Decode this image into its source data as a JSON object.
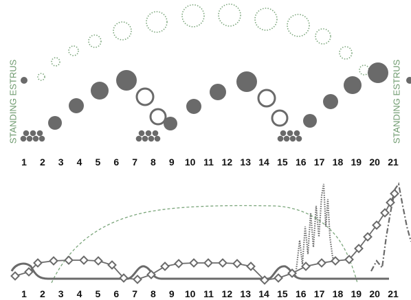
{
  "top": {
    "left_label": "STANDING ESTRUS",
    "right_label": "STANDING ESTRUS",
    "days": [
      "1",
      "2",
      "3",
      "4",
      "5",
      "6",
      "7",
      "8",
      "9",
      "10",
      "11",
      "12",
      "13",
      "14",
      "15",
      "16",
      "17",
      "18",
      "19",
      "20",
      "21"
    ]
  },
  "bottom": {
    "days": [
      "1",
      "2",
      "3",
      "4",
      "5",
      "6",
      "7",
      "8",
      "9",
      "10",
      "11",
      "12",
      "13",
      "14",
      "15",
      "16",
      "17",
      "18",
      "19",
      "20",
      "21"
    ]
  }
}
